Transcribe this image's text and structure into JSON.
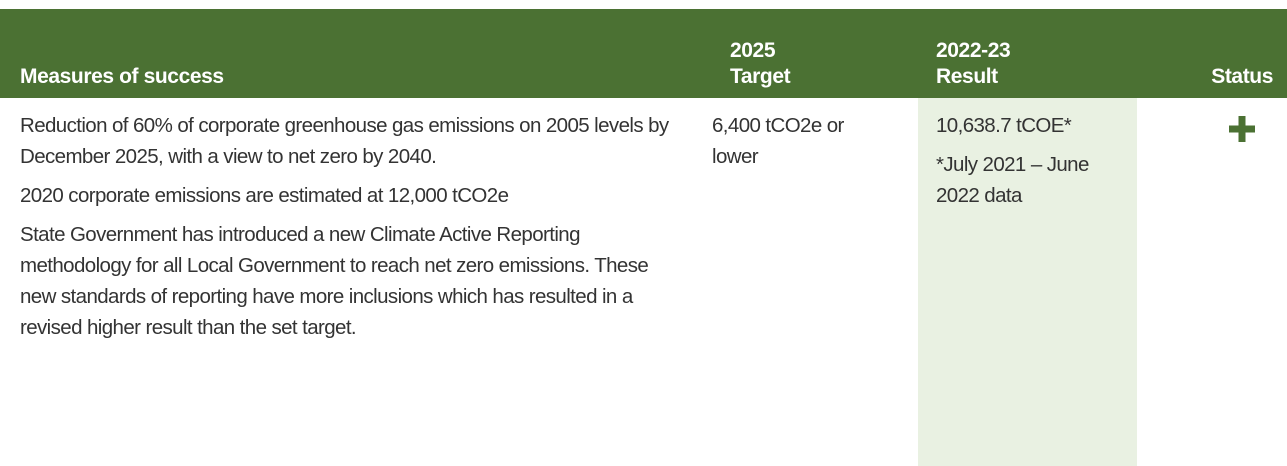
{
  "table": {
    "header": [
      "Measures of success",
      "2025 Target",
      "2022-23 Result",
      "Status"
    ],
    "rows": [
      [
        [
          "Reduction of 60% of corporate greenhouse gas emissions on 2005 levels by December 2025, with a view to net zero by 2040.",
          "2020 corporate emissions are estimated at 12,000 tCO2e",
          "State Government has introduced a new Climate Active Reporting methodology for all Local Government to reach net zero emissions. These new standards of reporting have more inclusions which has resulted in a revised higher result than the set target."
        ],
        [
          "6,400 tCO2e or lower"
        ],
        [
          "10,638.7 tCOE*",
          "*July 2021 – June 2022 data"
        ]
      ]
    ]
  }
}
